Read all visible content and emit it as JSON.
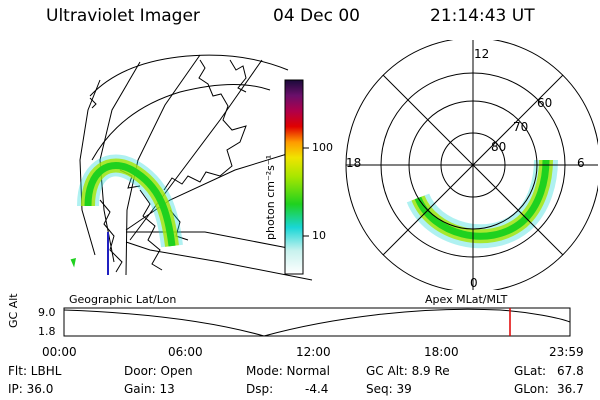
{
  "header": {
    "instrument": "Ultraviolet Imager",
    "date": "04 Dec 00",
    "time": "21:14:43 UT"
  },
  "colorbar": {
    "unit_label": "photon cm⁻²s⁻¹",
    "ticks": [
      "100",
      "10"
    ]
  },
  "geo_panel": {
    "label": "Geographic Lat/Lon"
  },
  "apex_panel": {
    "label": "Apex  MLat/MLT",
    "mlt_labels": [
      "12",
      "18",
      "6",
      "0"
    ],
    "lat_labels": [
      "60",
      "70",
      "80"
    ]
  },
  "timeline": {
    "axis_label": "GC Alt",
    "y_labels": [
      "9.0",
      "1.8"
    ],
    "x_labels": [
      "00:00",
      "06:00",
      "12:00",
      "18:00",
      "23:59"
    ],
    "current_time": "21:14:43"
  },
  "status": {
    "filter": "Flt: LBHL",
    "door": "Door: Open",
    "mode": "Mode: Normal",
    "gc_alt": "GC Alt: 8.9 Re",
    "glat_label": "GLat:",
    "glat_value": "67.8",
    "ip": "IP: 36.0",
    "gain": "Gain: 13",
    "dsp_label": "Dsp:",
    "dsp_value": "-4.4",
    "seq": "Seq: 39",
    "glon_label": "GLon:",
    "glon_value": "36.7"
  },
  "colors": {
    "aurora_core": "#1fd11f",
    "aurora_mid": "#a6e600",
    "aurora_edge": "#19d6d6",
    "marker": "#e00000"
  }
}
